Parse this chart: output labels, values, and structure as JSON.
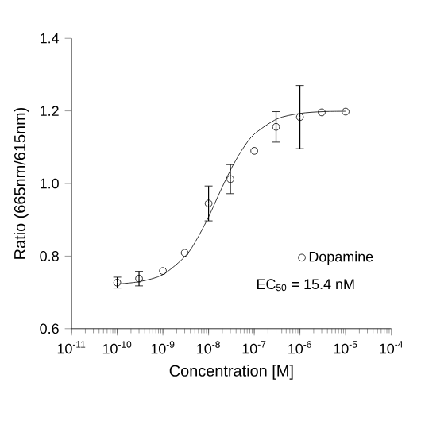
{
  "chart_data": {
    "type": "scatter",
    "xlabel": "Concentration [M]",
    "ylabel": "Ratio (665nm/615nm)",
    "log": "x",
    "xlim": [
      1e-11,
      0.0001
    ],
    "xticks": [
      {
        "value": 1e-11,
        "label": "10$^{-11}$"
      },
      {
        "value": 1e-10,
        "label": "10$^{-10}$"
      },
      {
        "value": 1e-09,
        "label": "10$^{-9}$"
      },
      {
        "value": 1e-08,
        "label": "10$^{-8}$"
      },
      {
        "value": 1e-07,
        "label": "10$^{-7}$"
      },
      {
        "value": 1e-06,
        "label": "10$^{-6}$"
      },
      {
        "value": 1e-05,
        "label": "10$^{-5}$"
      },
      {
        "value": 0.0001,
        "label": "10$^{-4}$"
      }
    ],
    "ylim": [
      0.6,
      1.4
    ],
    "yticks": [
      0.6,
      0.8,
      {
        "value": 1.0,
        "label": "1.0"
      },
      1.2,
      1.4
    ],
    "legend": "bottom right",
    "grid": false,
    "series": [
      {
        "name": "Dopamine",
        "color": "#000000",
        "marker": "circle",
        "x": [
          1e-10,
          3e-10,
          1e-09,
          3e-09,
          1e-08,
          3e-08,
          1e-07,
          3e-07,
          1e-06,
          3e-06,
          1e-05
        ],
        "values": [
          0.727,
          0.738,
          0.759,
          0.809,
          0.945,
          1.012,
          1.09,
          1.156,
          1.183,
          1.196,
          1.198
        ],
        "errors": [
          0.015,
          0.02,
          null,
          null,
          0.048,
          0.04,
          null,
          0.042,
          0.087,
          null,
          null
        ]
      },
      {
        "type": "line",
        "color": "#000000",
        "marker": "none",
        "line_style": "solid",
        "x": [
          1e-10,
          3.16e-10,
          1e-09,
          3.16e-09,
          5.62e-09,
          1e-08,
          1.78e-08,
          3.16e-08,
          5.62e-08,
          1e-07,
          3.16e-07,
          1e-06,
          3.16e-06,
          1e-05
        ],
        "values": [
          0.723,
          0.73,
          0.749,
          0.801,
          0.848,
          0.908,
          0.977,
          1.042,
          1.096,
          1.136,
          1.178,
          1.193,
          1.198,
          1.199
        ]
      }
    ],
    "annotations": [
      "EC$_{50}$ = 15.4 nM"
    ]
  }
}
